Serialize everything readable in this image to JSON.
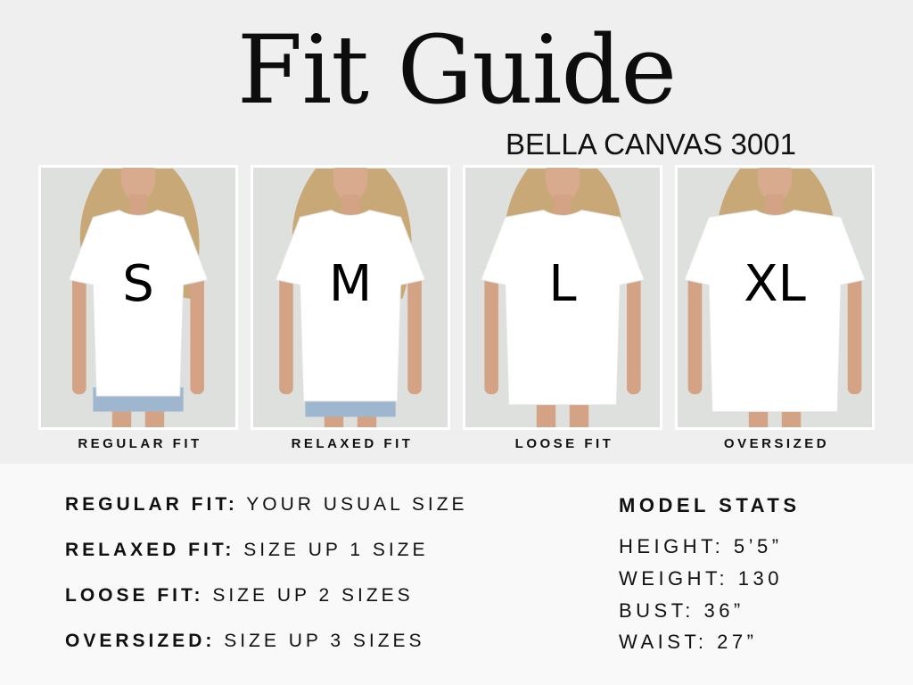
{
  "header": {
    "title": "Fit Guide",
    "subtitle": "BELLA CANVAS 3001"
  },
  "cards": [
    {
      "size": "S",
      "label": "REGULAR FIT"
    },
    {
      "size": "M",
      "label": "RELAXED FIT"
    },
    {
      "size": "L",
      "label": "LOOSE FIT"
    },
    {
      "size": "XL",
      "label": "OVERSIZED"
    }
  ],
  "fit_notes": [
    {
      "term": "REGULAR FIT:",
      "desc": "YOUR USUAL SIZE"
    },
    {
      "term": "RELAXED FIT:",
      "desc": "SIZE UP 1 SIZE"
    },
    {
      "term": "LOOSE FIT:",
      "desc": "SIZE UP 2 SIZES"
    },
    {
      "term": "OVERSIZED:",
      "desc": "SIZE UP 3 SIZES"
    }
  ],
  "model_stats": {
    "title": "MODEL STATS",
    "items": [
      "HEIGHT: 5’5”",
      "WEIGHT: 130",
      "BUST: 36”",
      "WAIST: 27”"
    ]
  },
  "colors": {
    "background": "#efefef",
    "panel": "#f9f9f9",
    "photo_bg": "#dde0dc",
    "shirt": "#ffffff",
    "text": "#111111"
  }
}
